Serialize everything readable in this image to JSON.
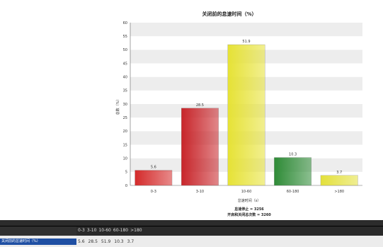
{
  "chart_data": {
    "type": "bar",
    "title": "关闭前的怠速时间（%）",
    "xlabel": "怠速时间（s）",
    "ylabel": "总数（%）",
    "categories": [
      "0-3",
      "3-10",
      "10-60",
      "60-180",
      ">180"
    ],
    "values": [
      5.6,
      28.5,
      51.9,
      10.3,
      3.7
    ],
    "bar_labels": [
      "5.6",
      "28.5",
      "51.9",
      "10.3",
      "3.7"
    ],
    "colors": [
      "#d42a2a",
      "#c8252a",
      "#e6e235",
      "#2e8b36",
      "#e3e03a"
    ],
    "ylim": [
      0,
      60
    ],
    "yticks": [
      0,
      5,
      10,
      15,
      20,
      25,
      30,
      35,
      40,
      45,
      50,
      55,
      60
    ],
    "grid": true,
    "summary": [
      "怠速停止 = 3256",
      "开启和关闭总次数 = 3260"
    ]
  },
  "table": {
    "header_label": "",
    "header_cells": [
      "0-3",
      "3-10",
      "10-60",
      "60-180",
      ">180"
    ],
    "row_label": "关闭前的怠速时间（%）",
    "row_values": [
      "5.6",
      "28.5",
      "51.9",
      "10.3",
      "3.7"
    ]
  }
}
